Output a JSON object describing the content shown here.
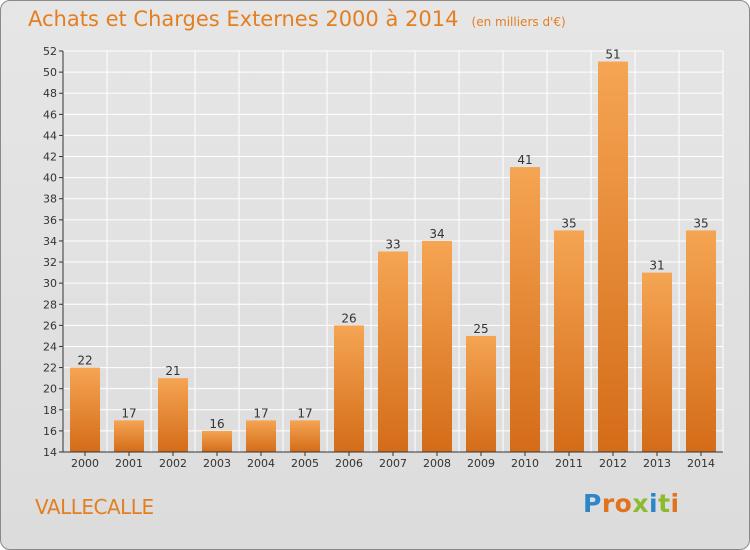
{
  "header": {
    "title": "Achats et Charges Externes 2000 à 2014",
    "unit": "(en milliers d'€)"
  },
  "footer": {
    "commune": "VALLECALLE",
    "logo_letters": [
      "P",
      "r",
      "o",
      "x",
      "i",
      "t",
      "i"
    ]
  },
  "colors": {
    "bar_top": "#f5a553",
    "bar_bottom": "#d46c18",
    "accent": "#e47f21",
    "grid": "#ffffff",
    "axis": "#333333"
  },
  "chart_data": {
    "type": "bar",
    "title": "Achats et Charges Externes 2000 à 2014",
    "subtitle": "(en milliers d'€)",
    "categories": [
      "2000",
      "2001",
      "2002",
      "2003",
      "2004",
      "2005",
      "2006",
      "2007",
      "2008",
      "2009",
      "2010",
      "2011",
      "2012",
      "2013",
      "2014"
    ],
    "values": [
      22,
      17,
      21,
      16,
      17,
      17,
      26,
      33,
      34,
      25,
      41,
      35,
      51,
      31,
      35
    ],
    "ylim": [
      14,
      52
    ],
    "yticks": [
      14,
      16,
      18,
      20,
      22,
      24,
      26,
      28,
      30,
      32,
      34,
      36,
      38,
      40,
      42,
      44,
      46,
      48,
      50,
      52
    ],
    "grid": true,
    "data_labels": true,
    "xlabel": "",
    "ylabel": ""
  }
}
